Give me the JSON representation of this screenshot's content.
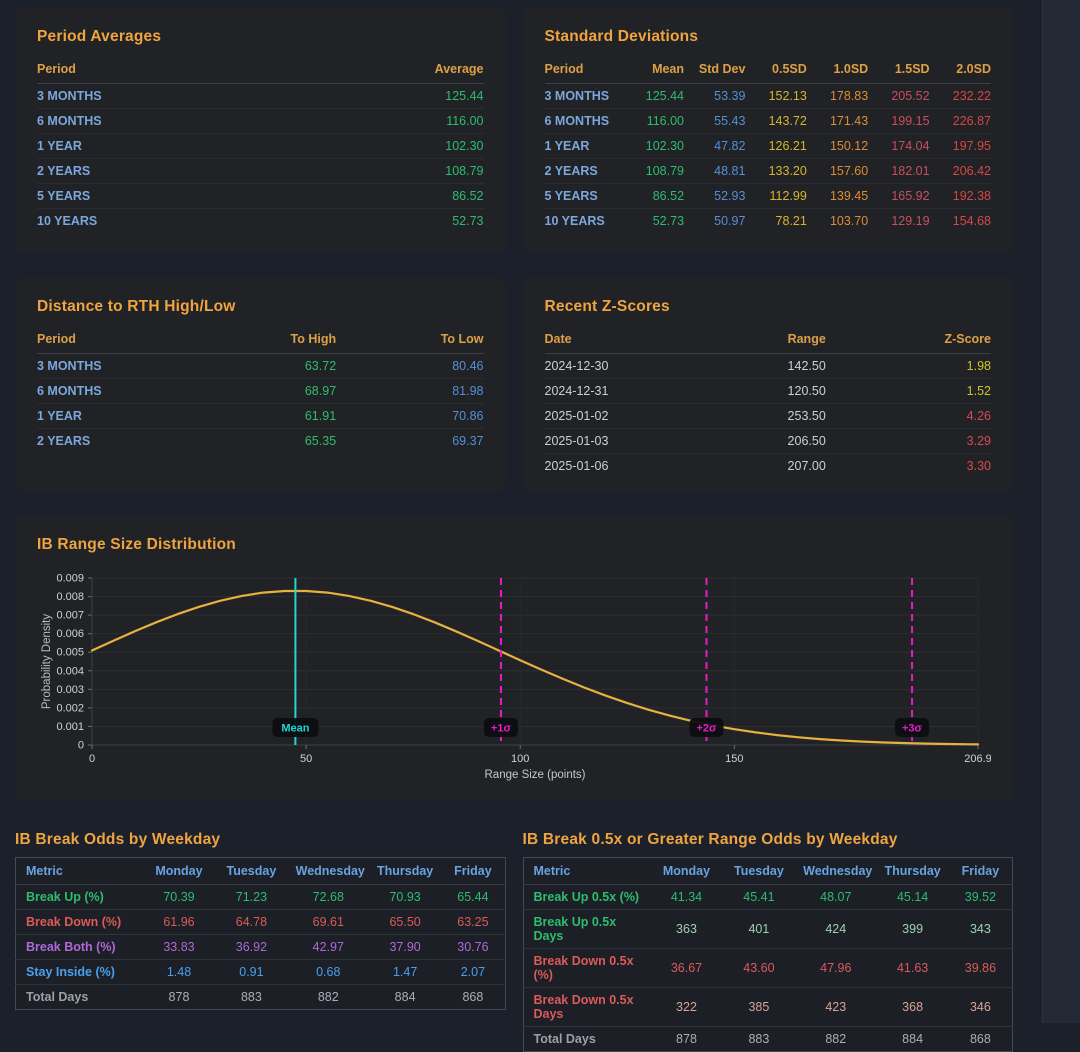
{
  "accent_colors": {
    "title_orange": "#efa440",
    "header_orange": "#dca147",
    "period_blue": "#7ba7dc",
    "positive_green": "#2dbd6e",
    "stdev_blue": "#548fd6",
    "sd05_yellow": "#d6b62e",
    "sd10_orange": "#df8c33",
    "sd15_crimson": "#c94f5c",
    "sd20_red": "#d54747",
    "weekday_header_blue": "#68a3e3",
    "card_background": "#212226",
    "page_background": "#1b202b"
  },
  "cards": {
    "period_averages": {
      "title": "Period Averages",
      "columns": [
        "Period",
        "Average"
      ],
      "rows": [
        {
          "cells": [
            "3 MONTHS",
            "125.44"
          ]
        },
        {
          "cells": [
            "6 MONTHS",
            "116.00"
          ]
        },
        {
          "cells": [
            "1 YEAR",
            "102.30"
          ]
        },
        {
          "cells": [
            "2 YEARS",
            "108.79"
          ]
        },
        {
          "cells": [
            "5 YEARS",
            "86.52"
          ]
        },
        {
          "cells": [
            "10 YEARS",
            "52.73"
          ]
        }
      ]
    },
    "standard_deviations": {
      "title": "Standard Deviations",
      "columns": [
        "Period",
        "Mean",
        "Std Dev",
        "0.5SD",
        "1.0SD",
        "1.5SD",
        "2.0SD"
      ],
      "rows": [
        {
          "cells": [
            "3 MONTHS",
            "125.44",
            "53.39",
            "152.13",
            "178.83",
            "205.52",
            "232.22"
          ]
        },
        {
          "cells": [
            "6 MONTHS",
            "116.00",
            "55.43",
            "143.72",
            "171.43",
            "199.15",
            "226.87"
          ]
        },
        {
          "cells": [
            "1 YEAR",
            "102.30",
            "47.82",
            "126.21",
            "150.12",
            "174.04",
            "197.95"
          ]
        },
        {
          "cells": [
            "2 YEARS",
            "108.79",
            "48.81",
            "133.20",
            "157.60",
            "182.01",
            "206.42"
          ]
        },
        {
          "cells": [
            "5 YEARS",
            "86.52",
            "52.93",
            "112.99",
            "139.45",
            "165.92",
            "192.38"
          ]
        },
        {
          "cells": [
            "10 YEARS",
            "52.73",
            "50.97",
            "78.21",
            "103.70",
            "129.19",
            "154.68"
          ]
        }
      ]
    },
    "distance_rth": {
      "title": "Distance to RTH High/Low",
      "columns": [
        "Period",
        "To High",
        "To Low"
      ],
      "rows": [
        {
          "cells": [
            "3 MONTHS",
            "63.72",
            "80.46"
          ]
        },
        {
          "cells": [
            "6 MONTHS",
            "68.97",
            "81.98"
          ]
        },
        {
          "cells": [
            "1 YEAR",
            "61.91",
            "70.86"
          ]
        },
        {
          "cells": [
            "2 YEARS",
            "65.35",
            "69.37"
          ]
        }
      ]
    },
    "recent_z": {
      "title": "Recent Z-Scores",
      "columns": [
        "Date",
        "Range",
        "Z-Score"
      ],
      "rows": [
        {
          "cells": [
            "2024-12-30",
            "142.50",
            "1.98"
          ],
          "z_color": "gold"
        },
        {
          "cells": [
            "2024-12-31",
            "120.50",
            "1.52"
          ],
          "z_color": "gold"
        },
        {
          "cells": [
            "2025-01-02",
            "253.50",
            "4.26"
          ],
          "z_color": "redz"
        },
        {
          "cells": [
            "2025-01-03",
            "206.50",
            "3.29"
          ],
          "z_color": "redz"
        },
        {
          "cells": [
            "2025-01-06",
            "207.00",
            "3.30"
          ],
          "z_color": "redz"
        }
      ]
    }
  },
  "chart_data": {
    "type": "line",
    "title": "IB Range Size Distribution",
    "xlabel": "Range Size (points)",
    "ylabel": "Probability Density",
    "xlim": [
      0,
      206.9
    ],
    "ylim": [
      0,
      0.009
    ],
    "grid": true,
    "x_ticks": [
      {
        "v": 0,
        "label": "0"
      },
      {
        "v": 50,
        "label": "50"
      },
      {
        "v": 100,
        "label": "100"
      },
      {
        "v": 150,
        "label": "150"
      },
      {
        "v": 206.9,
        "label": "206.9"
      }
    ],
    "y_ticks": [
      {
        "v": 0,
        "label": "0"
      },
      {
        "v": 0.001,
        "label": "0.001"
      },
      {
        "v": 0.002,
        "label": "0.002"
      },
      {
        "v": 0.003,
        "label": "0.003"
      },
      {
        "v": 0.004,
        "label": "0.004"
      },
      {
        "v": 0.005,
        "label": "0.005"
      },
      {
        "v": 0.006,
        "label": "0.006"
      },
      {
        "v": 0.007,
        "label": "0.007"
      },
      {
        "v": 0.008,
        "label": "0.008"
      },
      {
        "v": 0.009,
        "label": "0.009"
      }
    ],
    "distribution": {
      "mean": 47.5,
      "sigma": 48.0,
      "peak_density": 0.00831
    },
    "curve": {
      "name": "IB range size probability density",
      "color": "#e7b13f",
      "x": [
        0,
        5,
        10,
        15,
        20,
        25,
        30,
        35,
        40,
        45,
        50,
        55,
        60,
        65,
        70,
        75,
        80,
        85,
        90,
        95,
        100,
        105,
        110,
        115,
        120,
        125,
        130,
        135,
        140,
        145,
        150,
        155,
        160,
        165,
        170,
        175,
        180,
        185,
        190,
        195,
        200,
        205,
        206.9
      ],
      "y": [
        0.005094,
        0.005616,
        0.006126,
        0.00661,
        0.007054,
        0.007448,
        0.007777,
        0.008035,
        0.008211,
        0.008301,
        0.008301,
        0.008211,
        0.008035,
        0.007777,
        0.007448,
        0.007054,
        0.00661,
        0.006126,
        0.005616,
        0.005094,
        0.00457,
        0.004057,
        0.003561,
        0.003092,
        0.002657,
        0.002258,
        0.001898,
        0.001578,
        0.001297,
        0.001056,
        0.00085,
        0.000677,
        0.000533,
        0.000416,
        0.00032,
        0.000245,
        0.000184,
        0.000137,
        0.000102,
        7.4e-05,
        5.3e-05,
        3.8e-05,
        3.35e-05
      ]
    },
    "markers": [
      {
        "label": "Mean",
        "x": 47.5,
        "line": "solid",
        "color": "#23d5d5"
      },
      {
        "label": "+1σ",
        "x": 95.5,
        "line": "dashed",
        "color": "#e81cc7"
      },
      {
        "label": "+2σ",
        "x": 143.5,
        "line": "dashed",
        "color": "#e81cc7"
      },
      {
        "label": "+3σ",
        "x": 191.5,
        "line": "dashed",
        "color": "#e81cc7"
      }
    ]
  },
  "weekday_tables": [
    {
      "title": "IB Break Odds by Weekday",
      "columns": [
        "Metric",
        "Monday",
        "Tuesday",
        "Wednesday",
        "Thursday",
        "Friday"
      ],
      "rows": [
        {
          "metric": "Break Up (%)",
          "values": [
            "70.39",
            "71.23",
            "72.68",
            "70.93",
            "65.44"
          ],
          "label_color": "green",
          "value_color": "green"
        },
        {
          "metric": "Break Down (%)",
          "values": [
            "61.96",
            "64.78",
            "69.61",
            "65.50",
            "63.25"
          ],
          "label_color": "red",
          "value_color": "red"
        },
        {
          "metric": "Break Both (%)",
          "values": [
            "33.83",
            "36.92",
            "42.97",
            "37.90",
            "30.76"
          ],
          "label_color": "purple",
          "value_color": "purple"
        },
        {
          "metric": "Stay Inside (%)",
          "values": [
            "1.48",
            "0.91",
            "0.68",
            "1.47",
            "2.07"
          ],
          "label_color": "sky",
          "value_color": "sky"
        },
        {
          "metric": "Total Days",
          "values": [
            "878",
            "883",
            "882",
            "884",
            "868"
          ],
          "label_color": "gray",
          "value_color": "grayv"
        }
      ]
    },
    {
      "title": "IB Break 0.5x or Greater Range Odds by Weekday",
      "columns": [
        "Metric",
        "Monday",
        "Tuesday",
        "Wednesday",
        "Thursday",
        "Friday"
      ],
      "rows": [
        {
          "metric": "Break Up 0.5x (%)",
          "values": [
            "41.34",
            "45.41",
            "48.07",
            "45.14",
            "39.52"
          ],
          "label_color": "green",
          "value_color": "green"
        },
        {
          "metric": "Break Up 0.5x Days",
          "values": [
            "363",
            "401",
            "424",
            "399",
            "343"
          ],
          "label_color": "green",
          "value_color": "green-light"
        },
        {
          "metric": "Break Down 0.5x (%)",
          "values": [
            "36.67",
            "43.60",
            "47.96",
            "41.63",
            "39.86"
          ],
          "label_color": "red",
          "value_color": "red"
        },
        {
          "metric": "Break Down 0.5x Days",
          "values": [
            "322",
            "385",
            "423",
            "368",
            "346"
          ],
          "label_color": "red",
          "value_color": "red-light"
        },
        {
          "metric": "Total Days",
          "values": [
            "878",
            "883",
            "882",
            "884",
            "868"
          ],
          "label_color": "gray",
          "value_color": "grayv"
        }
      ]
    }
  ]
}
